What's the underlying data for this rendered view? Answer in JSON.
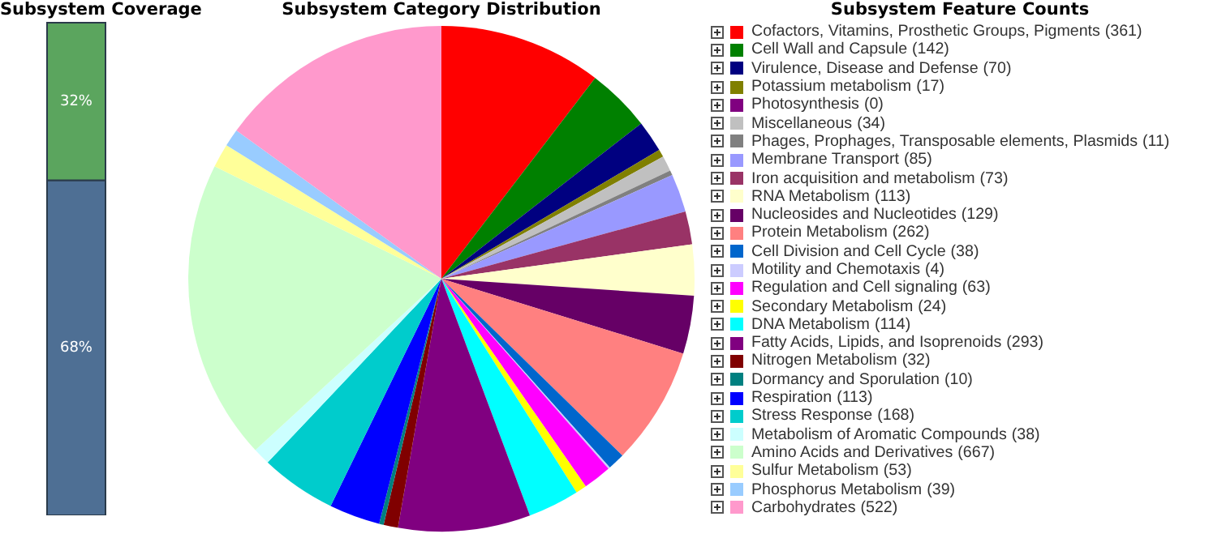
{
  "chart_data": [
    {
      "type": "bar",
      "title": "Subsystem Coverage",
      "stacked": true,
      "categories": [
        null
      ],
      "series": [
        {
          "color": "#4e6f94",
          "values": [
            68
          ],
          "value_labels": [
            "68%"
          ]
        },
        {
          "color": "#5ba55e",
          "values": [
            32
          ],
          "value_labels": [
            "32%"
          ]
        }
      ]
    },
    {
      "type": "pie",
      "title": "Subsystem Category Distribution",
      "legend_title": "Subsystem Feature Counts",
      "legend": "right",
      "value_labels": [
        "(361)",
        "(142)",
        "(70)",
        "(17)",
        "(0)",
        "(34)",
        "(11)",
        "(85)",
        "(73)",
        "(113)",
        "(129)",
        "(262)",
        "(38)",
        "(4)",
        "(63)",
        "(24)",
        "(114)",
        "(293)",
        "(32)",
        "(10)",
        "(113)",
        "(168)",
        "(38)",
        "(667)",
        "(53)",
        "(39)",
        "(522)"
      ],
      "categories": [
        "Cofactors, Vitamins, Prosthetic Groups, Pigments",
        "Cell Wall and Capsule",
        "Virulence, Disease and Defense",
        "Potassium metabolism",
        "Photosynthesis",
        "Miscellaneous",
        "Phages, Prophages, Transposable elements, Plasmids",
        "Membrane Transport",
        "Iron acquisition and metabolism",
        "RNA Metabolism",
        "Nucleosides and Nucleotides",
        "Protein Metabolism",
        "Cell Division and Cell Cycle",
        "Motility and Chemotaxis",
        "Regulation and Cell signaling",
        "Secondary Metabolism",
        "DNA Metabolism",
        "Fatty Acids, Lipids, and Isoprenoids",
        "Nitrogen Metabolism",
        "Dormancy and Sporulation",
        "Respiration",
        "Stress Response",
        "Metabolism of Aromatic Compounds",
        "Amino Acids and Derivatives",
        "Sulfur Metabolism",
        "Phosphorus Metabolism",
        "Carbohydrates"
      ],
      "values": [
        361,
        142,
        70,
        17,
        0,
        34,
        11,
        85,
        73,
        113,
        129,
        262,
        38,
        4,
        63,
        24,
        114,
        293,
        32,
        10,
        113,
        168,
        38,
        667,
        53,
        39,
        522
      ],
      "colors": [
        "#ff0000",
        "#008000",
        "#000080",
        "#808000",
        "#800080",
        "#c0c0c0",
        "#808080",
        "#9999ff",
        "#993366",
        "#ffffcc",
        "#660066",
        "#ff8080",
        "#0066cc",
        "#ccccff",
        "#ff00ff",
        "#ffff00",
        "#00ffff",
        "#800080",
        "#800000",
        "#008080",
        "#0000ff",
        "#00cccc",
        "#ccffff",
        "#ccffcc",
        "#ffff99",
        "#99ccff",
        "#ff99cc"
      ]
    }
  ]
}
